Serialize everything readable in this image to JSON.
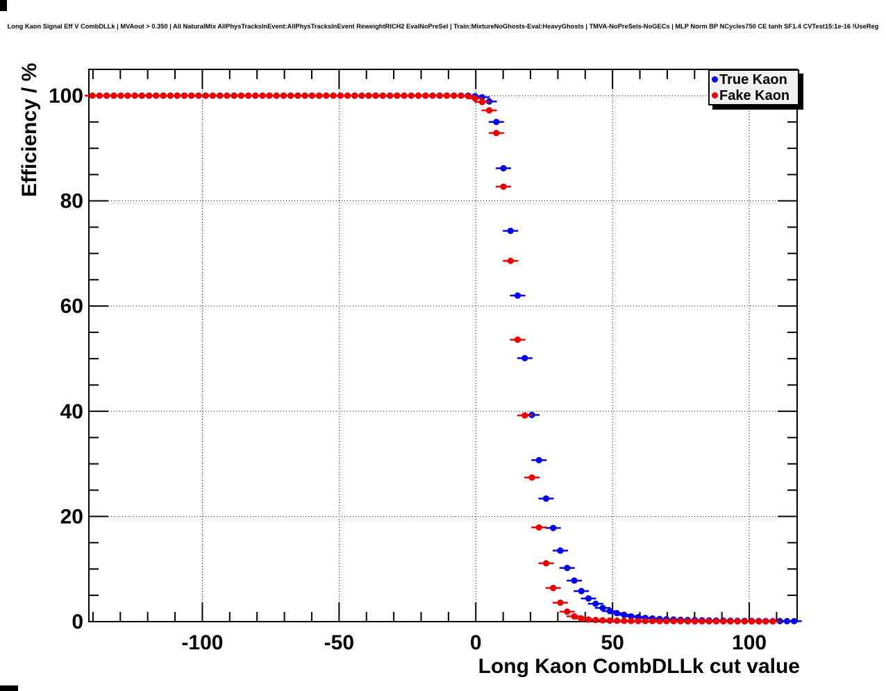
{
  "title": "Long Kaon Signal Eff V CombDLLk | MVAout > 0.350 | All NaturalMix AllPhysTracksInEvent:AllPhysTracksInEvent ReweightRICH2 EvalNoPreSel | Train:MixtureNoGhosts-Eval:HeavyGhosts | TMVA-NoPreSels-NoGECs | MLP Norm BP NCycles750 CE tanh SF1.4 CVTest15:1e-16 !UseReg",
  "colors": {
    "axis": "#000000",
    "grid": "#000000",
    "legend_fill": "#f0f0f0",
    "legend_shadow": "#000000",
    "true_kaon": "#0000ee",
    "fake_kaon": "#ee0000",
    "background": "#ffffff"
  },
  "chart_data": {
    "type": "scatter",
    "title": "Long Kaon Signal Eff V CombDLLk | MVAout > 0.350 | All NaturalMix AllPhysTracksInEvent:AllPhysTracksInEvent ReweightRICH2 EvalNoPreSel | Train:MixtureNoGhosts-Eval:HeavyGhosts | TMVA-NoPreSels-NoGECs | MLP Norm BP NCycles750 CE tanh SF1.4 CVTest15:1e-16 !UseReg",
    "xlabel": "Long Kaon CombDLLk cut value",
    "ylabel": "Efficiency / %",
    "xlim": [
      -141.5,
      117.5
    ],
    "ylim": [
      0,
      105
    ],
    "x_major_ticks": [
      -100,
      -50,
      0,
      50,
      100
    ],
    "x_minor_step": 10,
    "y_major_ticks": [
      0,
      20,
      40,
      60,
      80,
      100
    ],
    "y_minor_step": 5,
    "grid": {
      "style": "dotted",
      "at_major_ticks": true
    },
    "legend": {
      "position": "top-right",
      "entries": [
        {
          "label": "True Kaon",
          "color": "#0000ee"
        },
        {
          "label": "Fake Kaon",
          "color": "#ee0000"
        }
      ]
    },
    "series": [
      {
        "name": "True Kaon",
        "color": "#0000ee",
        "marker": "filled-circle",
        "x": [
          -140.2,
          -137.6,
          -135.0,
          -132.4,
          -129.8,
          -127.3,
          -124.7,
          -122.1,
          -119.5,
          -116.9,
          -114.3,
          -111.7,
          -109.2,
          -106.6,
          -104.0,
          -101.4,
          -98.8,
          -96.2,
          -93.6,
          -91.0,
          -88.4,
          -85.8,
          -83.2,
          -80.6,
          -78.0,
          -75.5,
          -72.9,
          -70.3,
          -67.7,
          -65.1,
          -62.5,
          -59.9,
          -57.3,
          -54.7,
          -52.1,
          -49.5,
          -46.9,
          -44.3,
          -41.7,
          -39.2,
          -36.6,
          -34.0,
          -31.4,
          -28.8,
          -26.2,
          -23.6,
          -21.0,
          -18.4,
          -15.8,
          -13.2,
          -10.6,
          -8.0,
          -5.4,
          -2.8,
          -0.3,
          2.3,
          4.9,
          7.5,
          10.1,
          12.7,
          15.3,
          17.9,
          20.5,
          23.1,
          25.7,
          28.3,
          30.9,
          33.4,
          36.0,
          38.6,
          41.2,
          43.8,
          46.4,
          49.0,
          51.6,
          54.2,
          56.8,
          59.4,
          62.0,
          64.6,
          67.2,
          69.7,
          72.3,
          74.9,
          77.5,
          80.1,
          82.7,
          85.3,
          87.9,
          90.5,
          93.1,
          95.7,
          98.3,
          100.9,
          103.5,
          106.0,
          108.6,
          111.2,
          113.8,
          116.4
        ],
        "y": [
          100,
          100,
          100,
          100,
          100,
          100,
          100,
          100,
          100,
          100,
          100,
          100,
          100,
          100,
          100,
          100,
          100,
          100,
          100,
          100,
          100,
          100,
          100,
          100,
          100,
          100,
          100,
          100,
          100,
          100,
          100,
          100,
          100,
          100,
          100,
          100,
          100,
          100,
          100,
          100,
          100,
          100,
          100,
          100,
          100,
          100,
          100,
          100,
          100,
          100,
          100,
          100,
          100,
          100,
          99.9,
          99.7,
          98.9,
          95.0,
          86.2,
          74.3,
          62.0,
          50.1,
          39.3,
          30.7,
          23.4,
          17.8,
          13.5,
          10.2,
          7.8,
          5.8,
          4.4,
          3.4,
          2.6,
          2.0,
          1.6,
          1.3,
          1.0,
          0.85,
          0.7,
          0.6,
          0.5,
          0.45,
          0.4,
          0.35,
          0.3,
          0.28,
          0.25,
          0.22,
          0.2,
          0.18,
          0.16,
          0.15,
          0.14,
          0.13,
          0.12,
          0.11,
          0.1,
          0.1,
          0.09,
          0.09
        ]
      },
      {
        "name": "Fake Kaon",
        "color": "#ee0000",
        "marker": "filled-circle",
        "x": [
          -140.2,
          -137.6,
          -135.0,
          -132.4,
          -129.8,
          -127.3,
          -124.7,
          -122.1,
          -119.5,
          -116.9,
          -114.3,
          -111.7,
          -109.2,
          -106.6,
          -104.0,
          -101.4,
          -98.8,
          -96.2,
          -93.6,
          -91.0,
          -88.4,
          -85.8,
          -83.2,
          -80.6,
          -78.0,
          -75.5,
          -72.9,
          -70.3,
          -67.7,
          -65.1,
          -62.5,
          -59.9,
          -57.3,
          -54.7,
          -52.1,
          -49.5,
          -46.9,
          -44.3,
          -41.7,
          -39.2,
          -36.6,
          -34.0,
          -31.4,
          -28.8,
          -26.2,
          -23.6,
          -21.0,
          -18.4,
          -15.8,
          -13.2,
          -10.6,
          -8.0,
          -5.4,
          -2.8,
          -0.3,
          2.3,
          4.9,
          7.5,
          10.1,
          12.7,
          15.3,
          17.9,
          20.5,
          23.1,
          25.7,
          28.3,
          30.9,
          33.4,
          36.0,
          38.6,
          41.2,
          43.8,
          46.4,
          49.0,
          51.6,
          54.2,
          56.8,
          59.4,
          62.0,
          64.6,
          67.2,
          69.7,
          72.3,
          74.9,
          77.5,
          80.1,
          82.7,
          85.3,
          87.9,
          90.5,
          93.1,
          95.7,
          98.3,
          100.9,
          103.5,
          106.0,
          108.6
        ],
        "y": [
          100,
          100,
          100,
          100,
          100,
          100,
          100,
          100,
          100,
          100,
          100,
          100,
          100,
          100,
          100,
          100,
          100,
          100,
          100,
          100,
          100,
          100,
          100,
          100,
          100,
          100,
          100,
          100,
          100,
          100,
          100,
          100,
          100,
          100,
          100,
          100,
          100,
          100,
          100,
          100,
          100,
          100,
          100,
          100,
          100,
          100,
          100,
          100,
          100,
          100,
          100,
          100,
          100,
          99.9,
          99.5,
          98.8,
          97.2,
          92.9,
          82.7,
          68.6,
          53.6,
          39.2,
          27.4,
          17.9,
          11.1,
          6.4,
          3.6,
          1.9,
          1.0,
          0.6,
          0.4,
          0.3,
          0.25,
          0.2,
          0.17,
          0.15,
          0.13,
          0.12,
          0.11,
          0.1,
          0.09,
          0.09,
          0.08,
          0.08,
          0.07,
          0.07,
          0.06,
          0.06,
          0.06,
          0.05,
          0.05,
          0.05,
          0.05,
          0.05,
          0.04,
          0.04,
          0.04
        ]
      }
    ]
  }
}
